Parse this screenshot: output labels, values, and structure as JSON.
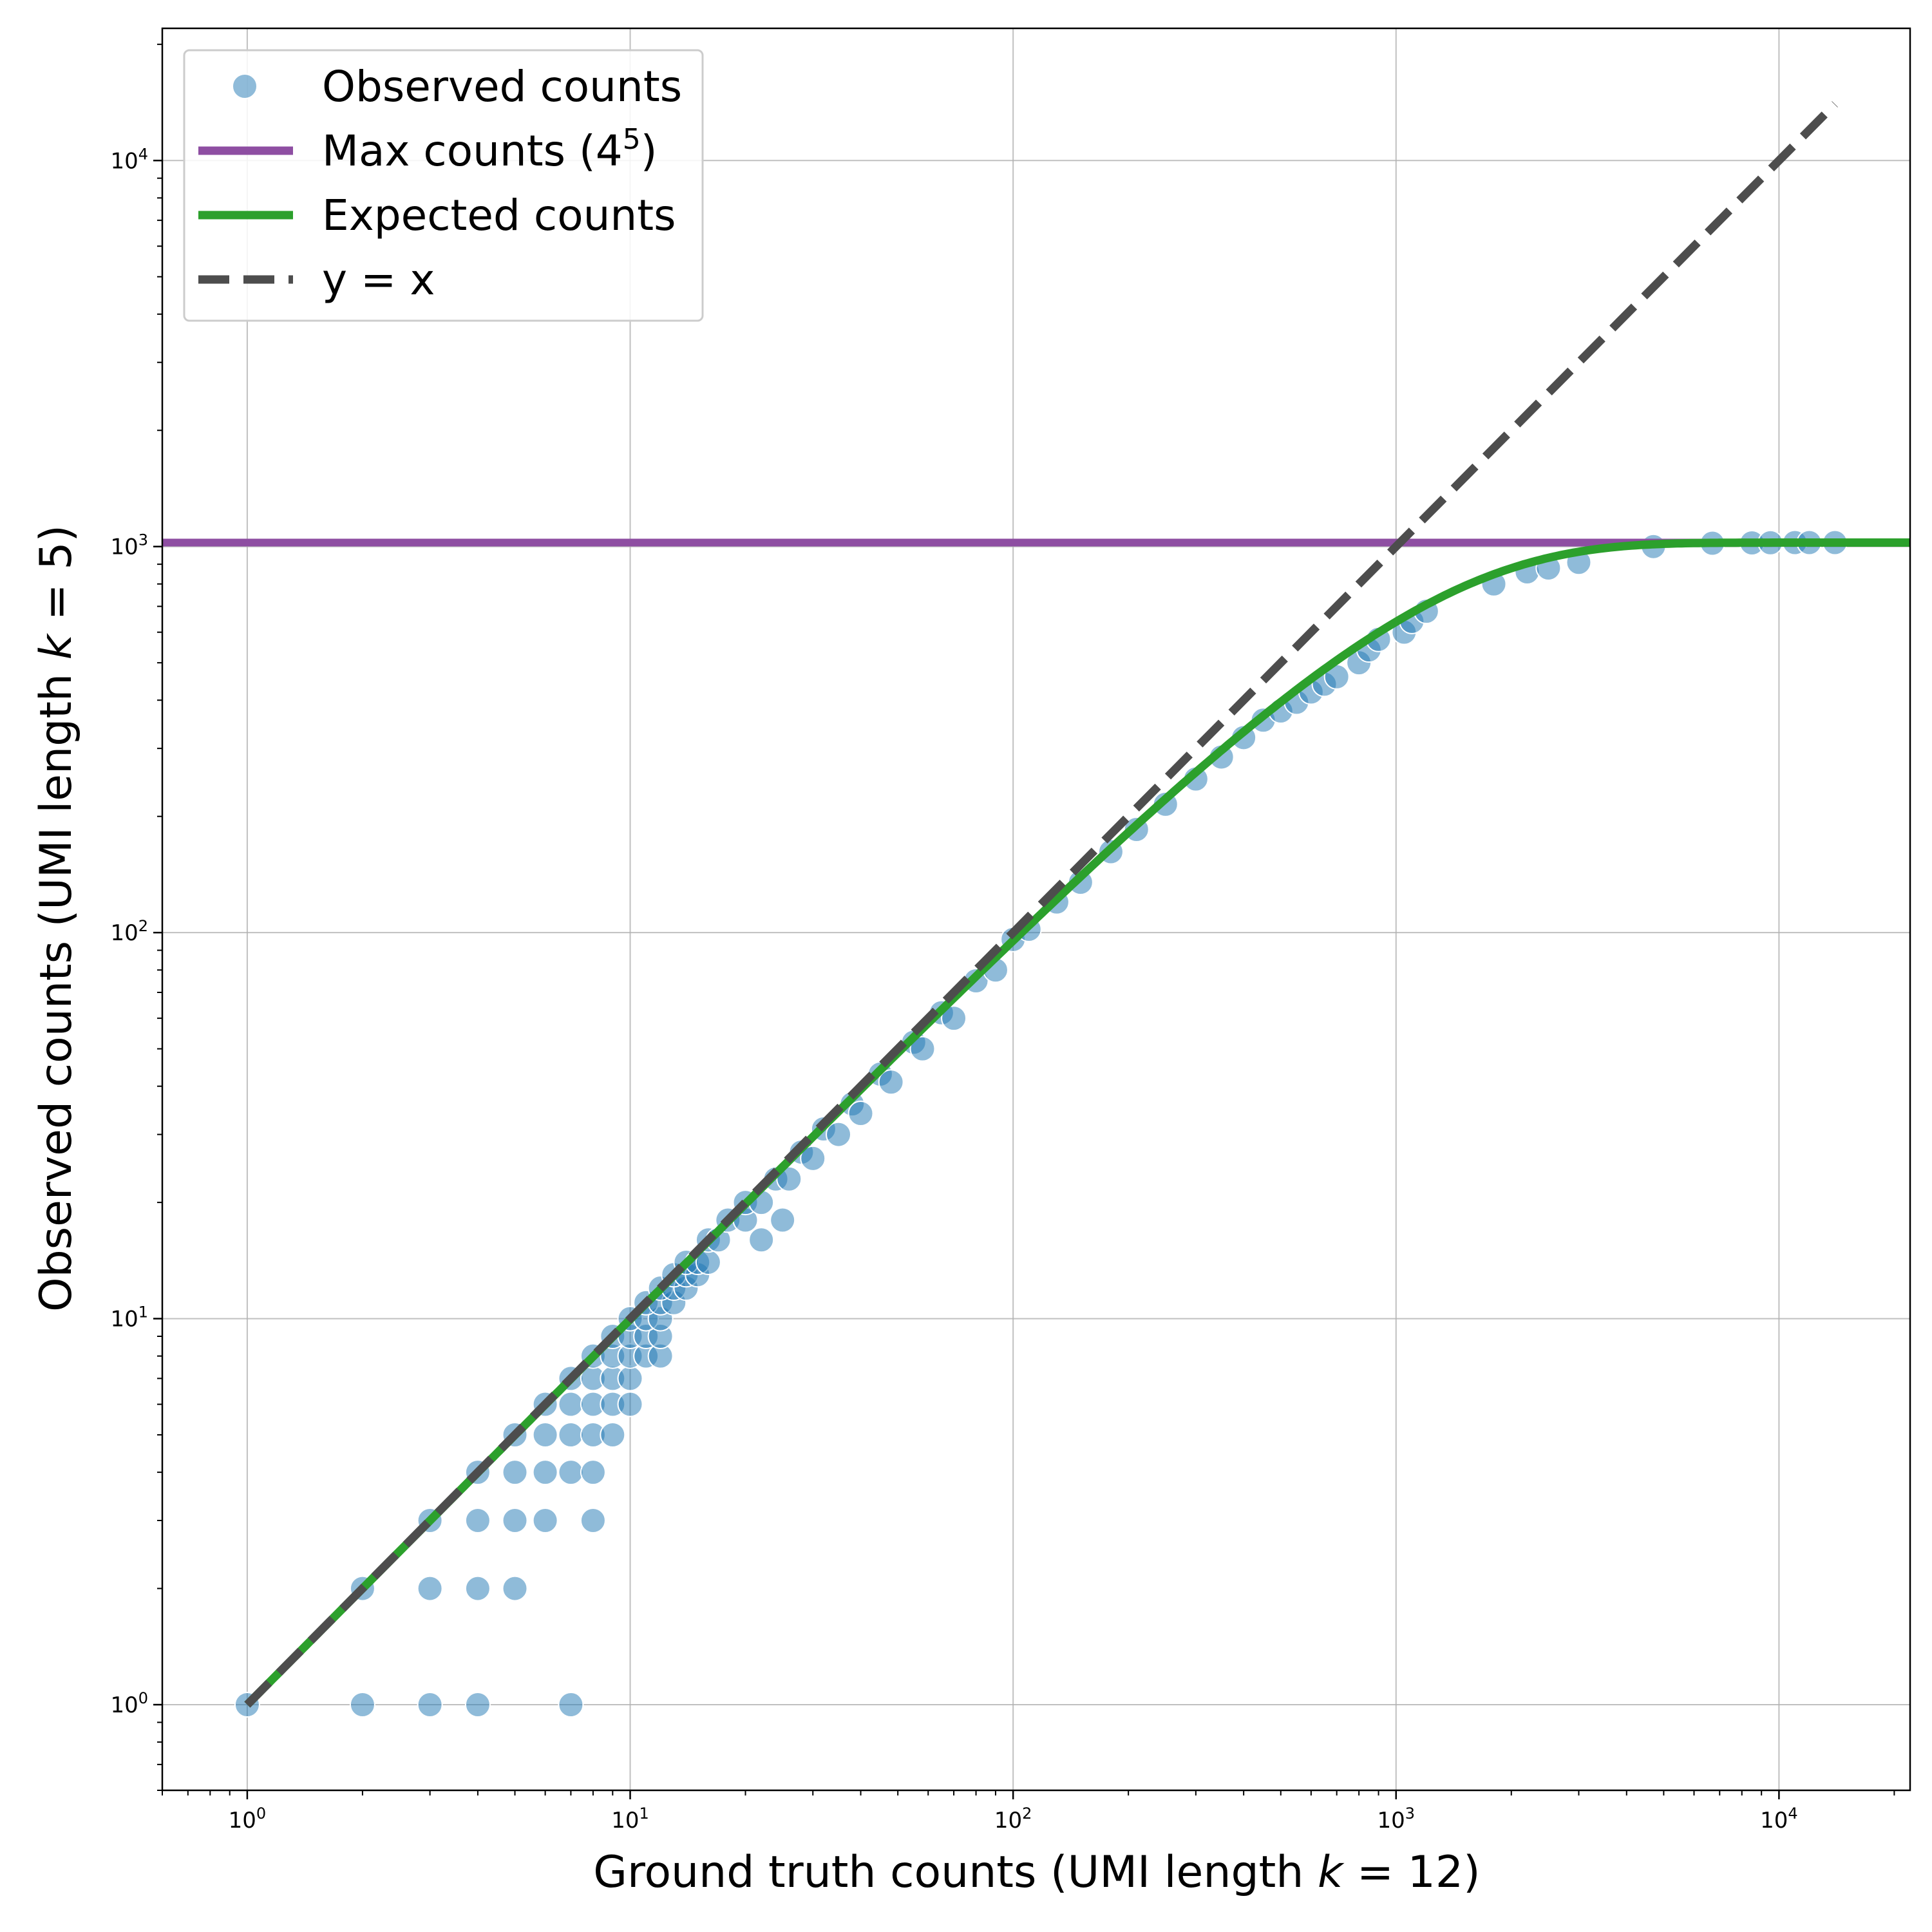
{
  "chart_data": {
    "type": "scatter",
    "xlabel": {
      "pre": "Ground truth counts (UMI length ",
      "var": "k",
      "post": " = 12)"
    },
    "ylabel": {
      "pre": "Observed counts (UMI length ",
      "var": "k",
      "post": " = 5)"
    },
    "x_scale": "log",
    "y_scale": "log",
    "xlim": [
      0.6,
      22000
    ],
    "ylim": [
      0.6,
      22000
    ],
    "grid": true,
    "legend_position": "upper-left",
    "x_ticks": [
      {
        "value": 1,
        "base": "10",
        "exp": "0"
      },
      {
        "value": 10,
        "base": "10",
        "exp": "1"
      },
      {
        "value": 100,
        "base": "10",
        "exp": "2"
      },
      {
        "value": 1000,
        "base": "10",
        "exp": "3"
      },
      {
        "value": 10000,
        "base": "10",
        "exp": "4"
      }
    ],
    "y_ticks": [
      {
        "value": 1,
        "base": "10",
        "exp": "0"
      },
      {
        "value": 10,
        "base": "10",
        "exp": "1"
      },
      {
        "value": 100,
        "base": "10",
        "exp": "2"
      },
      {
        "value": 1000,
        "base": "10",
        "exp": "3"
      },
      {
        "value": 10000,
        "base": "10",
        "exp": "4"
      }
    ],
    "legend": [
      {
        "key": "observed",
        "text": "Observed counts",
        "sup": "",
        "after": ""
      },
      {
        "key": "max",
        "text": "Max counts (4",
        "sup": "5",
        "after": ")"
      },
      {
        "key": "expected",
        "text": "Expected counts",
        "sup": "",
        "after": ""
      },
      {
        "key": "identity",
        "text": "y = x",
        "sup": "",
        "after": ""
      }
    ],
    "series": [
      {
        "key": "max",
        "kind": "hline",
        "color": "#8e4ea2",
        "y": 1024
      },
      {
        "key": "expected",
        "kind": "curve",
        "color": "#2ca02c",
        "formula": "y = 1024 * (1 - (1 - 1/1024)^x)",
        "x_range": [
          1,
          22000
        ]
      },
      {
        "key": "identity",
        "kind": "dashed-line",
        "color": "#4d4d4d",
        "x_range": [
          1,
          14000
        ]
      },
      {
        "key": "observed",
        "kind": "scatter",
        "color": "#1f77b4",
        "points": [
          [
            1,
            1
          ],
          [
            2,
            1
          ],
          [
            3,
            1
          ],
          [
            4,
            1
          ],
          [
            7,
            1
          ],
          [
            2,
            2
          ],
          [
            3,
            2
          ],
          [
            4,
            2
          ],
          [
            5,
            2
          ],
          [
            3,
            3
          ],
          [
            4,
            3
          ],
          [
            5,
            3
          ],
          [
            6,
            3
          ],
          [
            8,
            3
          ],
          [
            4,
            4
          ],
          [
            5,
            4
          ],
          [
            6,
            4
          ],
          [
            7,
            4
          ],
          [
            8,
            4
          ],
          [
            5,
            5
          ],
          [
            6,
            5
          ],
          [
            7,
            5
          ],
          [
            8,
            5
          ],
          [
            9,
            5
          ],
          [
            6,
            6
          ],
          [
            7,
            6
          ],
          [
            8,
            6
          ],
          [
            9,
            6
          ],
          [
            10,
            6
          ],
          [
            7,
            7
          ],
          [
            8,
            7
          ],
          [
            9,
            7
          ],
          [
            10,
            7
          ],
          [
            8,
            8
          ],
          [
            9,
            8
          ],
          [
            10,
            8
          ],
          [
            11,
            8
          ],
          [
            12,
            8
          ],
          [
            9,
            9
          ],
          [
            10,
            9
          ],
          [
            11,
            9
          ],
          [
            12,
            9
          ],
          [
            10,
            10
          ],
          [
            11,
            10
          ],
          [
            12,
            10
          ],
          [
            11,
            11
          ],
          [
            12,
            11
          ],
          [
            13,
            11
          ],
          [
            12,
            12
          ],
          [
            13,
            12
          ],
          [
            14,
            12
          ],
          [
            13,
            13
          ],
          [
            14,
            13
          ],
          [
            15,
            13
          ],
          [
            14,
            14
          ],
          [
            15,
            14
          ],
          [
            16,
            14
          ],
          [
            16,
            16
          ],
          [
            17,
            16
          ],
          [
            22,
            16
          ],
          [
            18,
            18
          ],
          [
            20,
            18
          ],
          [
            25,
            18
          ],
          [
            20,
            20
          ],
          [
            22,
            20
          ],
          [
            24,
            23
          ],
          [
            26,
            23
          ],
          [
            28,
            27
          ],
          [
            30,
            26
          ],
          [
            32,
            31
          ],
          [
            35,
            30
          ],
          [
            38,
            36
          ],
          [
            40,
            34
          ],
          [
            45,
            43
          ],
          [
            48,
            41
          ],
          [
            55,
            52
          ],
          [
            58,
            50
          ],
          [
            65,
            62
          ],
          [
            70,
            60
          ],
          [
            80,
            75
          ],
          [
            90,
            80
          ],
          [
            100,
            96
          ],
          [
            110,
            102
          ],
          [
            130,
            120
          ],
          [
            150,
            135
          ],
          [
            180,
            162
          ],
          [
            210,
            185
          ],
          [
            250,
            215
          ],
          [
            300,
            250
          ],
          [
            350,
            285
          ],
          [
            400,
            320
          ],
          [
            450,
            355
          ],
          [
            500,
            375
          ],
          [
            550,
            395
          ],
          [
            600,
            420
          ],
          [
            650,
            440
          ],
          [
            700,
            460
          ],
          [
            800,
            500
          ],
          [
            850,
            540
          ],
          [
            900,
            575
          ],
          [
            1050,
            600
          ],
          [
            1100,
            640
          ],
          [
            1200,
            680
          ],
          [
            1800,
            800
          ],
          [
            2200,
            860
          ],
          [
            2500,
            880
          ],
          [
            3000,
            910
          ],
          [
            4700,
            1000
          ],
          [
            6700,
            1020
          ],
          [
            8500,
            1022
          ],
          [
            9500,
            1023
          ],
          [
            11000,
            1024
          ],
          [
            12000,
            1024
          ],
          [
            14000,
            1024
          ]
        ]
      }
    ]
  }
}
